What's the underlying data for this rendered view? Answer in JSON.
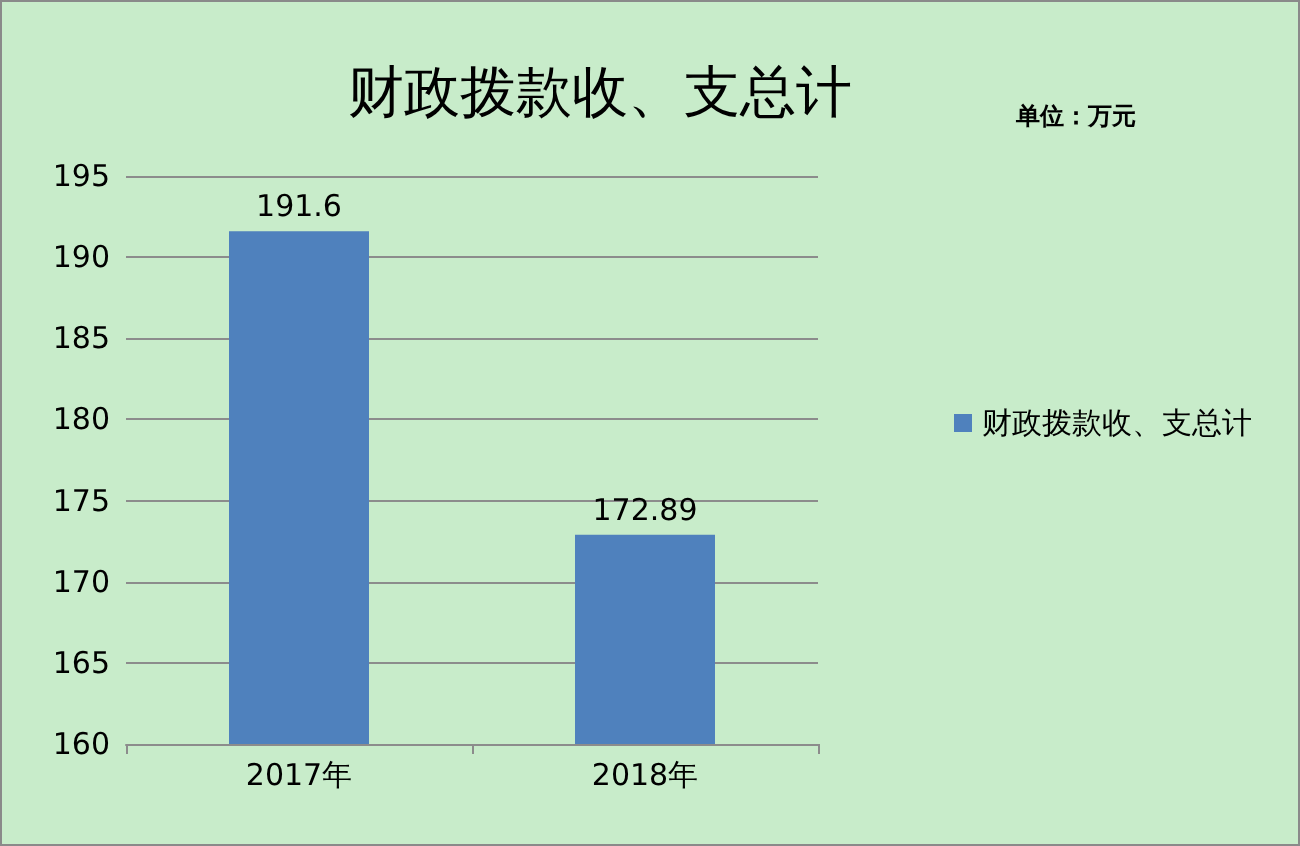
{
  "chart_data": {
    "type": "bar",
    "title": "财政拨款收、支总计",
    "subtitle": "单位：万元",
    "categories": [
      "2017年",
      "2018年"
    ],
    "series": [
      {
        "name": "财政拨款收、支总计",
        "color": "#4f81bd",
        "values": [
          191.6,
          172.89
        ]
      }
    ],
    "ylim": [
      160,
      195
    ],
    "yticks": [
      160,
      165,
      170,
      175,
      180,
      185,
      190,
      195
    ],
    "grid": "y",
    "legend": "right",
    "data_labels": true
  }
}
